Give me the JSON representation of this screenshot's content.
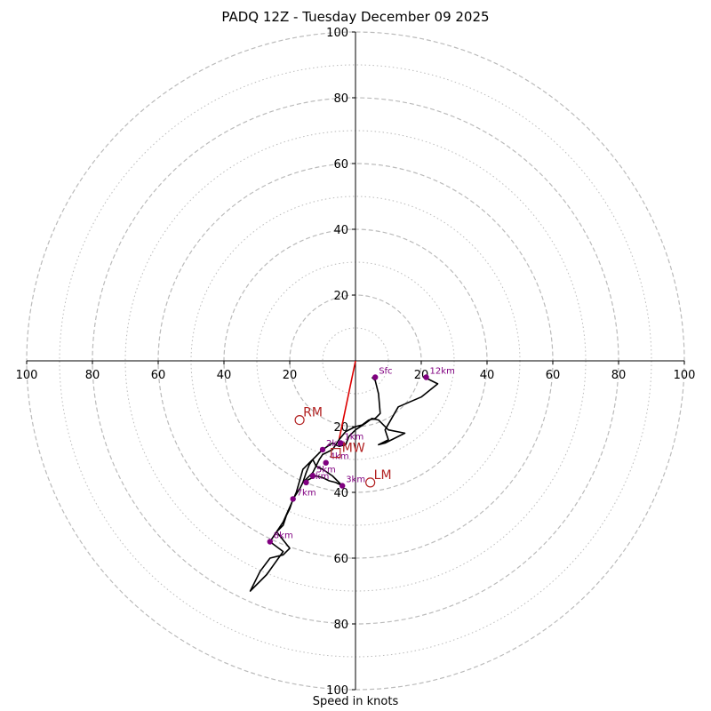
{
  "chart_data": {
    "type": "hodograph",
    "title": "PADQ 12Z - Tuesday December 09 2025",
    "xlabel": "Speed in knots",
    "units": "knots",
    "max_speed": 100,
    "ring_major": [
      20,
      40,
      60,
      80,
      100
    ],
    "ring_minor": [
      10,
      30,
      50,
      70,
      90
    ],
    "x_ticks": [
      "100",
      "80",
      "60",
      "40",
      "20",
      "",
      "20",
      "40",
      "60",
      "80",
      "100"
    ],
    "y_ticks": [
      "100",
      "80",
      "60",
      "40",
      "20",
      "20",
      "40",
      "60",
      "80",
      "100"
    ],
    "trace": [
      [
        5,
        -5
      ],
      [
        6,
        -6
      ],
      [
        7,
        -10
      ],
      [
        7.5,
        -16
      ],
      [
        6,
        -17.5
      ],
      [
        4,
        -18
      ],
      [
        2,
        -19.5
      ],
      [
        0,
        -20
      ],
      [
        -3,
        -21.5
      ],
      [
        -5,
        -24
      ],
      [
        -7,
        -27
      ],
      [
        -9,
        -28
      ],
      [
        -10,
        -28.5
      ],
      [
        -11,
        -30
      ],
      [
        -12,
        -32
      ],
      [
        -13,
        -34
      ],
      [
        -15,
        -36
      ],
      [
        -16,
        -37
      ],
      [
        -14,
        -36
      ],
      [
        -12,
        -35
      ],
      [
        -10,
        -35.5
      ],
      [
        -8,
        -36.5
      ],
      [
        -6,
        -37
      ],
      [
        -4,
        -38
      ],
      [
        -7,
        -35
      ],
      [
        -10,
        -33
      ],
      [
        -12,
        -32
      ],
      [
        -12.5,
        -31
      ],
      [
        -13,
        -30
      ],
      [
        -14,
        -31.5
      ],
      [
        -15,
        -34
      ],
      [
        -16,
        -37
      ],
      [
        -17,
        -39
      ],
      [
        -19,
        -42
      ],
      [
        -20,
        -45
      ],
      [
        -21,
        -47
      ],
      [
        -22,
        -50
      ],
      [
        -24,
        -52
      ],
      [
        -20,
        -57
      ],
      [
        -22,
        -59
      ],
      [
        -26,
        -60
      ],
      [
        -29,
        -64
      ],
      [
        -32,
        -70
      ],
      [
        -27,
        -65
      ],
      [
        -22,
        -58
      ],
      [
        -26,
        -55
      ],
      [
        -22,
        -49
      ],
      [
        -18,
        -40
      ],
      [
        -16,
        -33
      ],
      [
        -13,
        -30
      ],
      [
        -10,
        -27
      ],
      [
        -7,
        -25
      ],
      [
        -5,
        -26
      ],
      [
        -3,
        -25.5
      ],
      [
        -2,
        -23
      ],
      [
        0,
        -21
      ],
      [
        3,
        -19
      ],
      [
        5,
        -17.5
      ],
      [
        7,
        -18
      ],
      [
        10,
        -21
      ],
      [
        15,
        -22
      ],
      [
        9,
        -25
      ],
      [
        7,
        -25.5
      ],
      [
        10,
        -24
      ],
      [
        9,
        -21
      ],
      [
        13,
        -14
      ],
      [
        20,
        -11
      ],
      [
        25,
        -7
      ],
      [
        21,
        -5
      ]
    ],
    "markers": [
      {
        "label": "Sfc",
        "u": 6,
        "v": -5
      },
      {
        "label": "12km",
        "u": 21.5,
        "v": -5
      },
      {
        "label": "1km",
        "u": -4.5,
        "v": -25
      },
      {
        "label": "2km",
        "u": -10,
        "v": -27
      },
      {
        "label": "3km",
        "u": -4,
        "v": -38
      },
      {
        "label": "4km",
        "u": -9,
        "v": -31
      },
      {
        "label": "5km",
        "u": -13,
        "v": -35
      },
      {
        "label": "6km",
        "u": -15,
        "v": -37
      },
      {
        "label": "7km",
        "u": -19,
        "v": -42
      },
      {
        "label": "8km",
        "u": -26,
        "v": -55
      }
    ],
    "storm_motion": {
      "RM": {
        "u": -17,
        "v": -18
      },
      "LM": {
        "u": 4.5,
        "v": -37
      },
      "MW": {
        "u": -6,
        "v": -28
      }
    },
    "shear_vector": {
      "from": [
        0,
        0
      ],
      "to": [
        -5,
        -24
      ]
    },
    "colors": {
      "trace": "#000000",
      "marker": "#800080",
      "storm": "#b22222",
      "shear": "#dd0000",
      "ring": "#bbbbbb"
    }
  }
}
